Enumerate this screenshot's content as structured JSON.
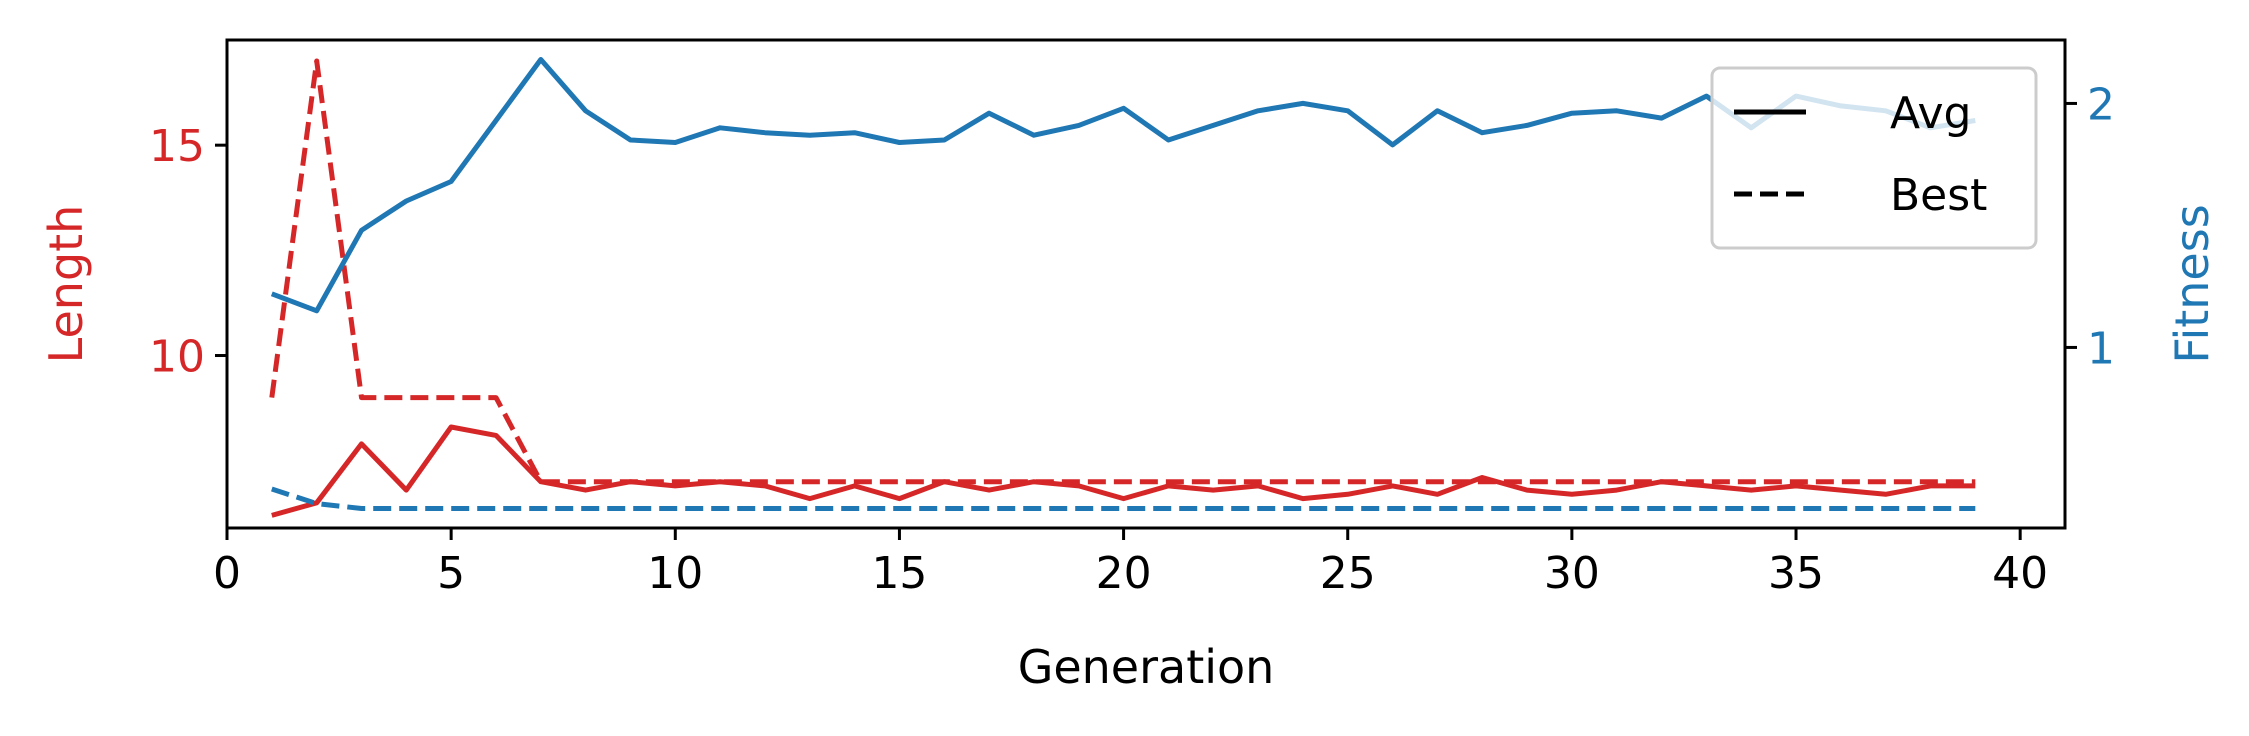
{
  "chart_data": {
    "type": "line",
    "title": "",
    "xlabel": "Generation",
    "ylabel_left": "Length",
    "ylabel_right": "Fitness",
    "x": [
      1,
      2,
      3,
      4,
      5,
      6,
      7,
      8,
      9,
      10,
      11,
      12,
      13,
      14,
      15,
      16,
      17,
      18,
      19,
      20,
      21,
      22,
      23,
      24,
      25,
      26,
      27,
      28,
      29,
      30,
      31,
      32,
      33,
      34,
      35,
      36,
      37,
      38,
      39
    ],
    "xlim": [
      0,
      41
    ],
    "ylim_left": [
      5.9,
      17.5
    ],
    "ylim_right": [
      0.26,
      2.26
    ],
    "xticks": [
      0,
      5,
      10,
      15,
      20,
      25,
      30,
      35,
      40
    ],
    "yticks_left": [
      10,
      15
    ],
    "yticks_right": [
      1,
      2
    ],
    "grid": false,
    "legend": {
      "placement": "top-right",
      "entries": [
        {
          "label": "Avg",
          "style": "solid"
        },
        {
          "label": "Best",
          "style": "dashed"
        }
      ]
    },
    "colors": {
      "length": "#d62728",
      "fitness": "#1f77b4"
    },
    "series": [
      {
        "axis": "left",
        "metric": "length",
        "stat": "avg",
        "style": "solid",
        "values": [
          6.2,
          6.5,
          7.9,
          6.8,
          8.3,
          8.1,
          7.0,
          6.8,
          7.0,
          6.9,
          7.0,
          6.9,
          6.6,
          6.9,
          6.6,
          7.0,
          6.8,
          7.0,
          6.9,
          6.6,
          6.9,
          6.8,
          6.9,
          6.6,
          6.7,
          6.9,
          6.7,
          7.1,
          6.8,
          6.7,
          6.8,
          7.0,
          6.9,
          6.8,
          6.9,
          6.8,
          6.7,
          6.9,
          6.9
        ]
      },
      {
        "axis": "left",
        "metric": "length",
        "stat": "best",
        "style": "dashed",
        "values": [
          9,
          17,
          9,
          9,
          9,
          9,
          7,
          7,
          7,
          7,
          7,
          7,
          7,
          7,
          7,
          7,
          7,
          7,
          7,
          7,
          7,
          7,
          7,
          7,
          7,
          7,
          7,
          7,
          7,
          7,
          7,
          7,
          7,
          7,
          7,
          7,
          7,
          7,
          7
        ]
      },
      {
        "axis": "right",
        "metric": "fitness",
        "stat": "avg",
        "style": "solid",
        "values": [
          1.22,
          1.15,
          1.48,
          1.6,
          1.68,
          1.93,
          2.18,
          1.97,
          1.85,
          1.84,
          1.9,
          1.88,
          1.87,
          1.88,
          1.84,
          1.85,
          1.96,
          1.87,
          1.91,
          1.98,
          1.85,
          1.91,
          1.97,
          2.0,
          1.97,
          1.83,
          1.97,
          1.88,
          1.91,
          1.96,
          1.97,
          1.94,
          2.03,
          1.9,
          2.03,
          1.99,
          1.97,
          1.9,
          1.93
        ]
      },
      {
        "axis": "right",
        "metric": "fitness",
        "stat": "best",
        "style": "dashed",
        "values": [
          0.42,
          0.36,
          0.34,
          0.34,
          0.34,
          0.34,
          0.34,
          0.34,
          0.34,
          0.34,
          0.34,
          0.34,
          0.34,
          0.34,
          0.34,
          0.34,
          0.34,
          0.34,
          0.34,
          0.34,
          0.34,
          0.34,
          0.34,
          0.34,
          0.34,
          0.34,
          0.34,
          0.34,
          0.34,
          0.34,
          0.34,
          0.34,
          0.34,
          0.34,
          0.34,
          0.34,
          0.34,
          0.34,
          0.34
        ]
      }
    ]
  }
}
